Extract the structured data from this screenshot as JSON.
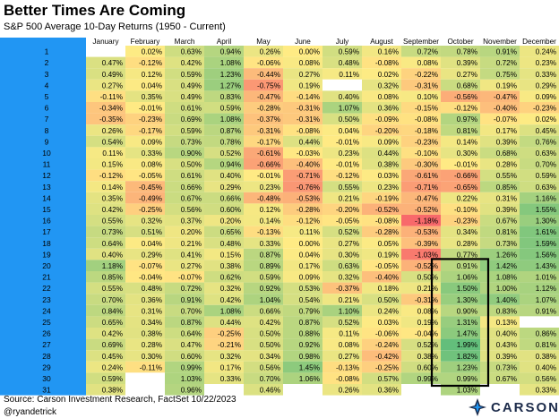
{
  "colors": {
    "day_col": "#2196f3",
    "low": "#f8696b",
    "mid": "#ffeb84",
    "high": "#63be7b",
    "highlight_box": "#000000"
  },
  "chart_data": {
    "type": "heatmap",
    "title": "Better Times Are Coming",
    "subtitle": "S&P 500 Average 10-Day Returns (1950 - Current)",
    "columns": [
      "January",
      "February",
      "March",
      "April",
      "May",
      "June",
      "July",
      "August",
      "September",
      "October",
      "November",
      "December"
    ],
    "rows": [
      {
        "day": "1",
        "values": [
          null,
          "0.02%",
          "0.63%",
          "0.94%",
          "0.26%",
          "0.00%",
          "0.59%",
          "0.16%",
          "0.72%",
          "0.78%",
          "0.91%",
          "0.24%"
        ]
      },
      {
        "day": "2",
        "values": [
          "0.47%",
          "-0.12%",
          "0.42%",
          "1.08%",
          "-0.06%",
          "0.08%",
          "0.48%",
          "-0.08%",
          "0.08%",
          "0.39%",
          "0.72%",
          "0.23%"
        ]
      },
      {
        "day": "3",
        "values": [
          "0.49%",
          "0.12%",
          "0.59%",
          "1.23%",
          "-0.44%",
          "0.27%",
          "0.11%",
          "0.02%",
          "-0.22%",
          "0.27%",
          "0.75%",
          "0.33%"
        ]
      },
      {
        "day": "4",
        "values": [
          "0.27%",
          "0.04%",
          "0.49%",
          "1.27%",
          "-0.75%",
          "0.19%",
          null,
          "0.32%",
          "-0.31%",
          "0.68%",
          "0.19%",
          "0.29%"
        ]
      },
      {
        "day": "5",
        "values": [
          "-0.11%",
          "0.35%",
          "0.49%",
          "0.83%",
          "-0.47%",
          "-0.14%",
          "0.40%",
          "0.08%",
          "0.10%",
          "-0.56%",
          "-0.47%",
          "0.09%"
        ]
      },
      {
        "day": "6",
        "values": [
          "-0.34%",
          "-0.01%",
          "0.61%",
          "0.59%",
          "-0.28%",
          "-0.31%",
          "1.07%",
          "0.36%",
          "-0.15%",
          "-0.12%",
          "-0.40%",
          "-0.23%"
        ]
      },
      {
        "day": "7",
        "values": [
          "-0.35%",
          "-0.23%",
          "0.69%",
          "1.08%",
          "-0.37%",
          "-0.31%",
          "0.50%",
          "-0.09%",
          "-0.08%",
          "0.97%",
          "-0.07%",
          "0.02%"
        ]
      },
      {
        "day": "8",
        "values": [
          "0.26%",
          "-0.17%",
          "0.59%",
          "0.87%",
          "-0.31%",
          "-0.08%",
          "0.04%",
          "-0.20%",
          "-0.18%",
          "0.81%",
          "0.17%",
          "0.45%"
        ]
      },
      {
        "day": "9",
        "values": [
          "0.54%",
          "0.09%",
          "0.73%",
          "0.78%",
          "-0.17%",
          "0.44%",
          "-0.01%",
          "0.09%",
          "-0.23%",
          "0.14%",
          "0.39%",
          "0.76%"
        ]
      },
      {
        "day": "10",
        "values": [
          "0.11%",
          "0.33%",
          "0.90%",
          "0.52%",
          "-0.61%",
          "-0.03%",
          "0.23%",
          "0.44%",
          "-0.10%",
          "0.30%",
          "0.68%",
          "0.63%"
        ]
      },
      {
        "day": "11",
        "values": [
          "0.15%",
          "0.08%",
          "0.50%",
          "0.94%",
          "-0.66%",
          "-0.40%",
          "-0.01%",
          "0.38%",
          "-0.30%",
          "-0.01%",
          "0.28%",
          "0.70%"
        ]
      },
      {
        "day": "12",
        "values": [
          "-0.12%",
          "-0.05%",
          "0.61%",
          "0.40%",
          "-0.01%",
          "-0.71%",
          "-0.12%",
          "0.03%",
          "-0.61%",
          "-0.66%",
          "0.55%",
          "0.59%"
        ]
      },
      {
        "day": "13",
        "values": [
          "0.14%",
          "-0.45%",
          "0.66%",
          "0.29%",
          "0.23%",
          "-0.76%",
          "0.55%",
          "0.23%",
          "-0.71%",
          "-0.65%",
          "0.85%",
          "0.63%"
        ]
      },
      {
        "day": "14",
        "values": [
          "0.35%",
          "-0.49%",
          "0.67%",
          "0.66%",
          "-0.48%",
          "-0.53%",
          "0.21%",
          "-0.19%",
          "-0.47%",
          "0.22%",
          "0.31%",
          "1.16%"
        ]
      },
      {
        "day": "15",
        "values": [
          "0.42%",
          "-0.25%",
          "0.56%",
          "0.60%",
          "0.12%",
          "-0.28%",
          "-0.20%",
          "-0.52%",
          "-0.52%",
          "-0.10%",
          "0.39%",
          "1.55%"
        ]
      },
      {
        "day": "16",
        "values": [
          "0.55%",
          "0.32%",
          "0.37%",
          "0.20%",
          "0.14%",
          "-0.12%",
          "-0.05%",
          "-0.08%",
          "-1.18%",
          "-0.23%",
          "0.67%",
          "1.30%"
        ]
      },
      {
        "day": "17",
        "values": [
          "0.73%",
          "0.51%",
          "0.20%",
          "0.65%",
          "-0.13%",
          "0.11%",
          "0.52%",
          "-0.28%",
          "-0.53%",
          "0.34%",
          "0.81%",
          "1.61%"
        ]
      },
      {
        "day": "18",
        "values": [
          "0.64%",
          "0.04%",
          "0.21%",
          "0.48%",
          "0.33%",
          "0.00%",
          "0.27%",
          "0.05%",
          "-0.39%",
          "0.28%",
          "0.73%",
          "1.59%"
        ]
      },
      {
        "day": "19",
        "values": [
          "0.40%",
          "0.29%",
          "0.41%",
          "0.15%",
          "0.87%",
          "0.04%",
          "0.30%",
          "0.19%",
          "-1.03%",
          "0.77%",
          "1.26%",
          "1.56%"
        ]
      },
      {
        "day": "20",
        "values": [
          "1.18%",
          "-0.07%",
          "0.27%",
          "0.38%",
          "0.89%",
          "0.17%",
          "0.63%",
          "-0.05%",
          "-0.52%",
          "0.91%",
          "1.42%",
          "1.43%"
        ]
      },
      {
        "day": "21",
        "values": [
          "0.85%",
          "-0.04%",
          "-0.07%",
          "0.62%",
          "0.59%",
          "0.09%",
          "0.32%",
          "-0.40%",
          "0.50%",
          "1.06%",
          "1.08%",
          "1.01%"
        ]
      },
      {
        "day": "22",
        "values": [
          "0.55%",
          "0.48%",
          "0.72%",
          "0.32%",
          "0.92%",
          "0.53%",
          "-0.37%",
          "0.18%",
          "0.21%",
          "1.50%",
          "1.00%",
          "1.12%"
        ]
      },
      {
        "day": "23",
        "values": [
          "0.70%",
          "0.36%",
          "0.91%",
          "0.42%",
          "1.04%",
          "0.54%",
          "0.21%",
          "0.50%",
          "-0.31%",
          "1.30%",
          "1.40%",
          "1.07%"
        ]
      },
      {
        "day": "24",
        "values": [
          "0.84%",
          "0.31%",
          "0.70%",
          "1.08%",
          "0.66%",
          "0.79%",
          "1.10%",
          "0.24%",
          "0.08%",
          "0.90%",
          "0.83%",
          "0.91%"
        ]
      },
      {
        "day": "25",
        "values": [
          "0.65%",
          "0.34%",
          "0.87%",
          "0.44%",
          "0.42%",
          "0.87%",
          "0.52%",
          "0.03%",
          "0.19%",
          "1.31%",
          "0.13%",
          null
        ]
      },
      {
        "day": "26",
        "values": [
          "0.42%",
          "0.38%",
          "0.64%",
          "-0.25%",
          "0.50%",
          "0.88%",
          "0.11%",
          "-0.06%",
          "-0.04%",
          "1.47%",
          "0.40%",
          "0.86%"
        ]
      },
      {
        "day": "27",
        "values": [
          "0.69%",
          "0.28%",
          "0.47%",
          "-0.21%",
          "0.50%",
          "0.92%",
          "0.08%",
          "-0.24%",
          "0.52%",
          "1.99%",
          "0.43%",
          "0.81%"
        ]
      },
      {
        "day": "28",
        "values": [
          "0.45%",
          "0.30%",
          "0.60%",
          "0.32%",
          "0.34%",
          "0.98%",
          "0.27%",
          "-0.42%",
          "0.38%",
          "1.82%",
          "0.39%",
          "0.38%"
        ]
      },
      {
        "day": "29",
        "values": [
          "0.24%",
          "-0.11%",
          "0.99%",
          "0.17%",
          "0.56%",
          "1.45%",
          "-0.13%",
          "-0.25%",
          "0.60%",
          "1.23%",
          "0.73%",
          "0.40%"
        ]
      },
      {
        "day": "30",
        "values": [
          "0.59%",
          null,
          "1.03%",
          "0.33%",
          "0.70%",
          "1.06%",
          "-0.08%",
          "0.57%",
          "0.99%",
          "0.99%",
          "0.67%",
          "0.56%"
        ]
      },
      {
        "day": "31",
        "values": [
          "0.38%",
          null,
          "0.96%",
          null,
          "0.46%",
          null,
          "0.26%",
          "0.36%",
          null,
          "1.03%",
          null,
          "0.33%"
        ]
      }
    ],
    "highlight": {
      "column": "October",
      "from_day": "20",
      "to_day": "30"
    }
  },
  "footer": {
    "source": "Source: Carson Investment Research, FactSet 10/22/2023",
    "handle": "@ryandetrick",
    "logo_text": "CARSON"
  }
}
